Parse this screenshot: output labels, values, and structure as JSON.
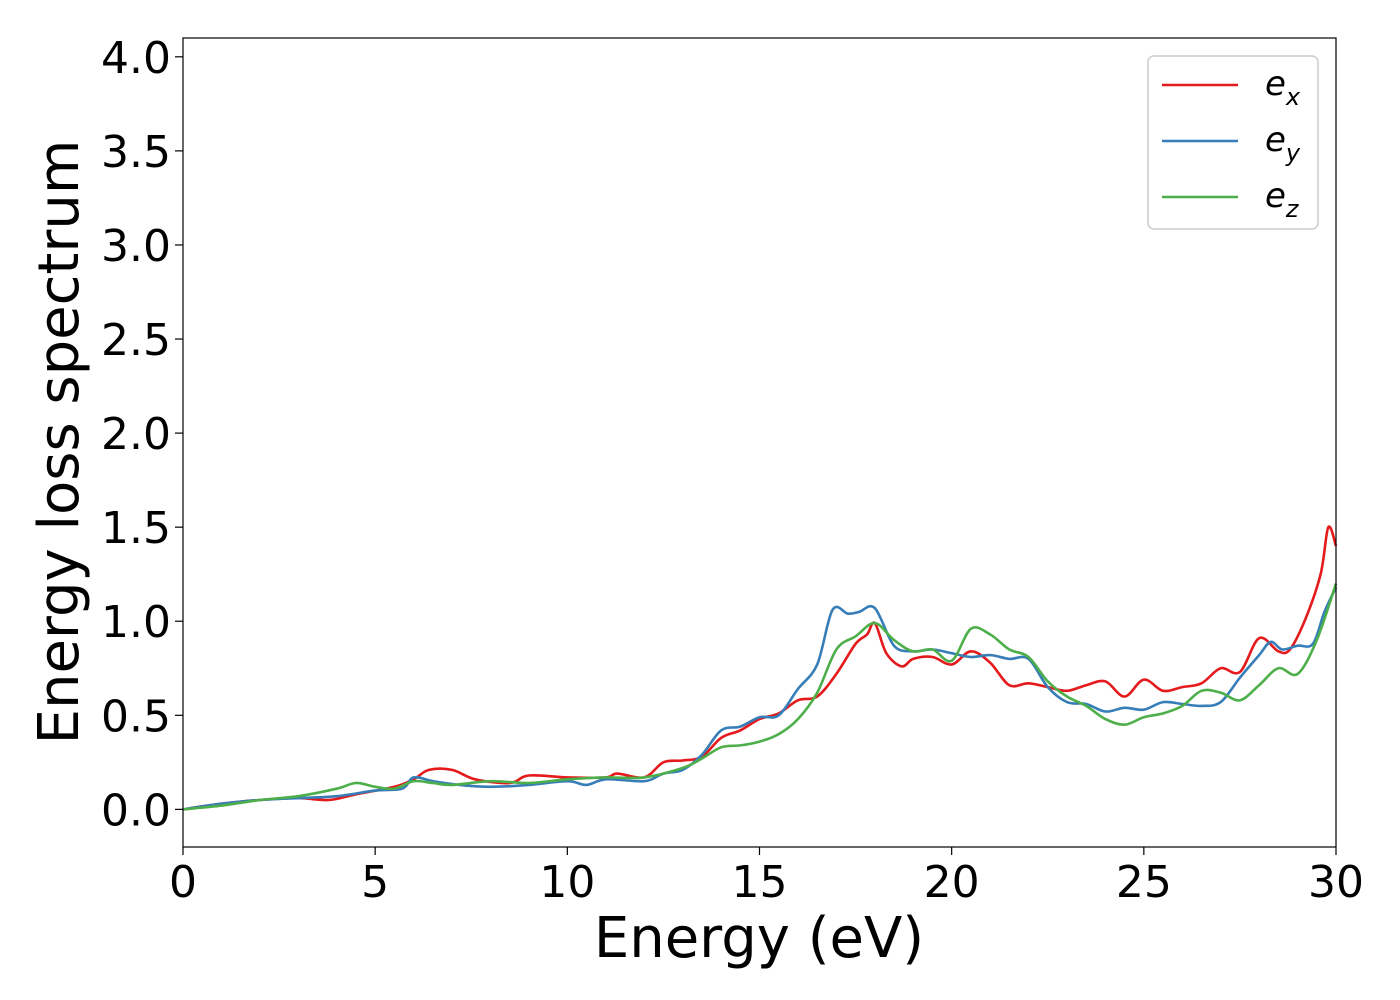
{
  "chart_data": {
    "type": "line",
    "xlabel": "Energy (eV)",
    "ylabel": "Energy loss spectrum",
    "xlim": [
      0,
      30
    ],
    "ylim": [
      -0.2,
      4.1
    ],
    "xticks": [
      "0",
      "5",
      "10",
      "15",
      "20",
      "25",
      "30"
    ],
    "yticks": [
      "0.0",
      "0.5",
      "1.0",
      "1.5",
      "2.0",
      "2.5",
      "3.0",
      "3.5",
      "4.0"
    ],
    "legend_position": "top-right",
    "grid": false,
    "series": [
      {
        "name": "e",
        "subscript": "x",
        "color": "#e41a1c",
        "points": [
          [
            0,
            0
          ],
          [
            1,
            0.03
          ],
          [
            2,
            0.05
          ],
          [
            3,
            0.06
          ],
          [
            3.8,
            0.05
          ],
          [
            4.5,
            0.08
          ],
          [
            5.5,
            0.12
          ],
          [
            6,
            0.16
          ],
          [
            6.4,
            0.21
          ],
          [
            7,
            0.21
          ],
          [
            7.6,
            0.16
          ],
          [
            8.5,
            0.14
          ],
          [
            9,
            0.18
          ],
          [
            10,
            0.17
          ],
          [
            11,
            0.17
          ],
          [
            11.3,
            0.19
          ],
          [
            12,
            0.17
          ],
          [
            12.5,
            0.25
          ],
          [
            13,
            0.26
          ],
          [
            13.5,
            0.28
          ],
          [
            14,
            0.38
          ],
          [
            14.5,
            0.42
          ],
          [
            15,
            0.48
          ],
          [
            15.5,
            0.51
          ],
          [
            16,
            0.58
          ],
          [
            16.5,
            0.6
          ],
          [
            17,
            0.72
          ],
          [
            17.5,
            0.88
          ],
          [
            17.8,
            0.93
          ],
          [
            18,
            0.99
          ],
          [
            18.3,
            0.83
          ],
          [
            18.7,
            0.76
          ],
          [
            19,
            0.8
          ],
          [
            19.5,
            0.81
          ],
          [
            20,
            0.77
          ],
          [
            20.5,
            0.84
          ],
          [
            21,
            0.78
          ],
          [
            21.5,
            0.66
          ],
          [
            22,
            0.67
          ],
          [
            22.5,
            0.65
          ],
          [
            23,
            0.63
          ],
          [
            23.5,
            0.66
          ],
          [
            24,
            0.68
          ],
          [
            24.5,
            0.6
          ],
          [
            25,
            0.69
          ],
          [
            25.5,
            0.63
          ],
          [
            26,
            0.65
          ],
          [
            26.5,
            0.67
          ],
          [
            27,
            0.75
          ],
          [
            27.5,
            0.73
          ],
          [
            28,
            0.91
          ],
          [
            28.5,
            0.84
          ],
          [
            28.8,
            0.85
          ],
          [
            29.2,
            1.01
          ],
          [
            29.6,
            1.25
          ],
          [
            29.8,
            1.5
          ],
          [
            30,
            1.4
          ]
        ]
      },
      {
        "name": "e",
        "subscript": "y",
        "color": "#377eb8",
        "points": [
          [
            0,
            0
          ],
          [
            1,
            0.03
          ],
          [
            2,
            0.05
          ],
          [
            3,
            0.06
          ],
          [
            4,
            0.07
          ],
          [
            5,
            0.1
          ],
          [
            5.7,
            0.11
          ],
          [
            6,
            0.17
          ],
          [
            6.5,
            0.15
          ],
          [
            7.2,
            0.13
          ],
          [
            8,
            0.12
          ],
          [
            9,
            0.13
          ],
          [
            10,
            0.15
          ],
          [
            10.5,
            0.13
          ],
          [
            11,
            0.16
          ],
          [
            12,
            0.15
          ],
          [
            12.5,
            0.19
          ],
          [
            13,
            0.21
          ],
          [
            13.5,
            0.29
          ],
          [
            14,
            0.42
          ],
          [
            14.5,
            0.44
          ],
          [
            15,
            0.49
          ],
          [
            15.5,
            0.5
          ],
          [
            16,
            0.64
          ],
          [
            16.5,
            0.77
          ],
          [
            16.9,
            1.06
          ],
          [
            17.3,
            1.04
          ],
          [
            17.6,
            1.05
          ],
          [
            18,
            1.07
          ],
          [
            18.5,
            0.87
          ],
          [
            19,
            0.84
          ],
          [
            19.5,
            0.85
          ],
          [
            20,
            0.83
          ],
          [
            20.5,
            0.81
          ],
          [
            21,
            0.82
          ],
          [
            21.5,
            0.8
          ],
          [
            22,
            0.8
          ],
          [
            22.5,
            0.65
          ],
          [
            23,
            0.57
          ],
          [
            23.5,
            0.56
          ],
          [
            24,
            0.52
          ],
          [
            24.5,
            0.54
          ],
          [
            25,
            0.53
          ],
          [
            25.5,
            0.57
          ],
          [
            26,
            0.56
          ],
          [
            26.5,
            0.55
          ],
          [
            27,
            0.57
          ],
          [
            27.5,
            0.7
          ],
          [
            28,
            0.82
          ],
          [
            28.3,
            0.89
          ],
          [
            28.6,
            0.85
          ],
          [
            29,
            0.87
          ],
          [
            29.4,
            0.88
          ],
          [
            29.7,
            1.05
          ],
          [
            30,
            1.18
          ]
        ]
      },
      {
        "name": "e",
        "subscript": "z",
        "color": "#4daf4a",
        "points": [
          [
            0,
            0
          ],
          [
            1,
            0.02
          ],
          [
            2,
            0.05
          ],
          [
            3,
            0.07
          ],
          [
            4,
            0.11
          ],
          [
            4.5,
            0.14
          ],
          [
            5,
            0.12
          ],
          [
            5.5,
            0.11
          ],
          [
            6,
            0.15
          ],
          [
            6.5,
            0.14
          ],
          [
            7,
            0.13
          ],
          [
            8,
            0.15
          ],
          [
            9,
            0.14
          ],
          [
            10,
            0.16
          ],
          [
            11,
            0.17
          ],
          [
            12,
            0.17
          ],
          [
            13,
            0.22
          ],
          [
            13.5,
            0.27
          ],
          [
            14,
            0.33
          ],
          [
            14.5,
            0.34
          ],
          [
            15,
            0.36
          ],
          [
            15.5,
            0.4
          ],
          [
            16,
            0.48
          ],
          [
            16.5,
            0.62
          ],
          [
            17,
            0.85
          ],
          [
            17.5,
            0.92
          ],
          [
            18,
            0.99
          ],
          [
            18.5,
            0.9
          ],
          [
            19,
            0.84
          ],
          [
            19.5,
            0.85
          ],
          [
            20,
            0.79
          ],
          [
            20.5,
            0.96
          ],
          [
            21,
            0.93
          ],
          [
            21.5,
            0.85
          ],
          [
            22,
            0.81
          ],
          [
            22.5,
            0.68
          ],
          [
            23,
            0.6
          ],
          [
            23.5,
            0.55
          ],
          [
            24,
            0.48
          ],
          [
            24.5,
            0.45
          ],
          [
            25,
            0.49
          ],
          [
            25.5,
            0.51
          ],
          [
            26,
            0.55
          ],
          [
            26.5,
            0.63
          ],
          [
            27,
            0.62
          ],
          [
            27.5,
            0.58
          ],
          [
            28,
            0.66
          ],
          [
            28.5,
            0.75
          ],
          [
            29,
            0.72
          ],
          [
            29.5,
            0.9
          ],
          [
            30,
            1.2
          ]
        ]
      }
    ]
  }
}
